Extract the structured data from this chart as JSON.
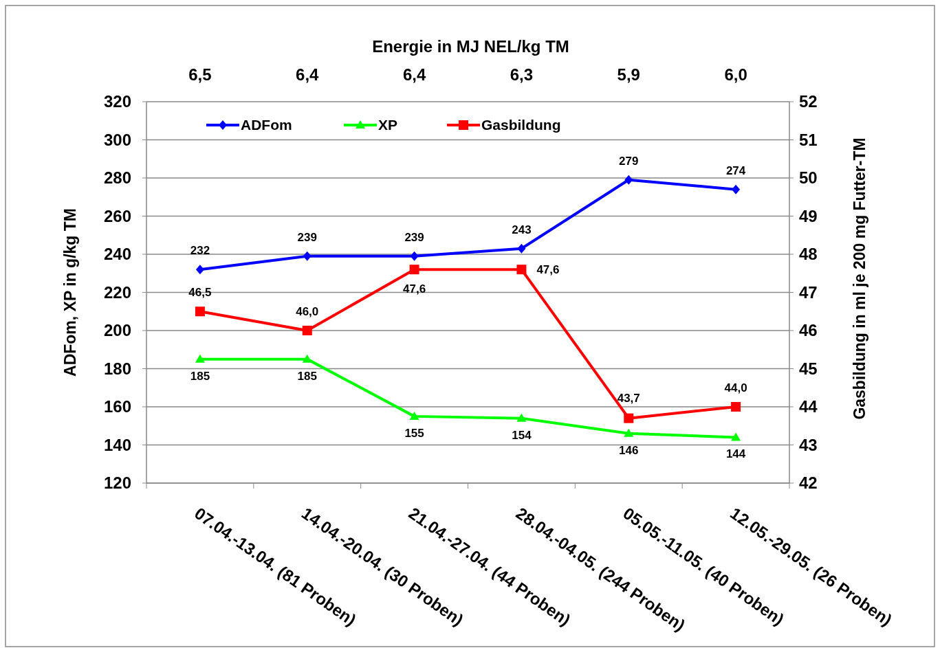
{
  "chart_data": {
    "type": "line",
    "categories": [
      "07.04.-13.04. (81 Proben)",
      "14.04.-20.04. (30 Proben)",
      "21.04.-27.04. (44 Proben)",
      "28.04.-04.05. (244 Proben)",
      "05.05.-11.05. (40 Proben)",
      "12.05.-29.05. (26 Proben)"
    ],
    "series": [
      {
        "name": "ADFom",
        "color": "#0000ff",
        "marker": "diamond",
        "values": [
          232,
          239,
          239,
          243,
          279,
          274
        ],
        "value_labels": [
          "232",
          "239",
          "239",
          "243",
          "279",
          "274"
        ]
      },
      {
        "name": "XP",
        "color": "#00ff00",
        "marker": "triangle",
        "values": [
          185,
          185,
          155,
          154,
          146,
          144
        ],
        "value_labels": [
          "185",
          "185",
          "155",
          "154",
          "146",
          "144"
        ]
      },
      {
        "name": "Gasbildung",
        "color": "#ff0000",
        "marker": "square",
        "axis": "y2",
        "values": [
          46.5,
          46.0,
          47.6,
          47.6,
          43.7,
          44.0
        ],
        "value_labels": [
          "46,5",
          "46,0",
          "47,6",
          "47,6",
          "43,7",
          "44,0"
        ]
      }
    ],
    "ylabel": "ADFom, XP in g/kg TM",
    "y2label": "Gasbildung in ml je 200 mg Futter-TM",
    "x2label": "Energie in MJ NEL/kg TM",
    "annotations": [
      "6,5",
      "6,4",
      "6,4",
      "6,3",
      "5,9",
      "6,0"
    ],
    "ylim": [
      120,
      320
    ],
    "yticks": [
      120,
      140,
      160,
      180,
      200,
      220,
      240,
      260,
      280,
      300,
      320
    ],
    "y2lim": [
      42,
      52
    ],
    "y2ticks": [
      42,
      43,
      44,
      45,
      46,
      47,
      48,
      49,
      50,
      51,
      52
    ],
    "grid": "y",
    "legend": "top left",
    "line_style": "solid"
  }
}
